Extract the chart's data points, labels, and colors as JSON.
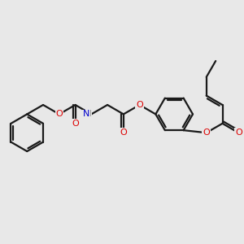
{
  "background_color": "#e8e8e8",
  "bond_color": "#1a1a1a",
  "oxygen_color": "#dd0000",
  "nitrogen_color": "#0000cc",
  "h_color": "#888888",
  "line_width": 1.6,
  "figsize": [
    3.0,
    3.0
  ],
  "dpi": 100,
  "xlim": [
    -1.0,
    11.0
  ],
  "ylim": [
    -1.5,
    5.5
  ]
}
